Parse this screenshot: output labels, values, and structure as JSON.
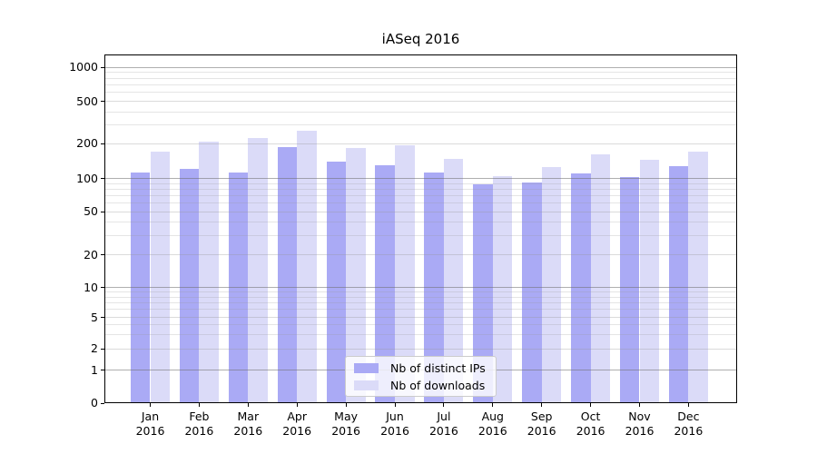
{
  "chart_data": {
    "type": "bar",
    "title": "iASeq 2016",
    "x_tick_months": [
      "Jan",
      "Feb",
      "Mar",
      "Apr",
      "May",
      "Jun",
      "Jul",
      "Aug",
      "Sep",
      "Oct",
      "Nov",
      "Dec"
    ],
    "x_tick_year": "2016",
    "categories": [
      "Jan 2016",
      "Feb 2016",
      "Mar 2016",
      "Apr 2016",
      "May 2016",
      "Jun 2016",
      "Jul 2016",
      "Aug 2016",
      "Sep 2016",
      "Oct 2016",
      "Nov 2016",
      "Dec 2016"
    ],
    "series": [
      {
        "name": "Nb of distinct IPs",
        "color": "#aaaaf5",
        "values": [
          112,
          121,
          113,
          186,
          141,
          130,
          112,
          89,
          92,
          111,
          104,
          127
        ]
      },
      {
        "name": "Nb of downloads",
        "color": "#dbdbf8",
        "values": [
          170,
          208,
          226,
          263,
          184,
          194,
          148,
          105,
          126,
          163,
          145,
          172
        ]
      }
    ],
    "yscale": "symlog",
    "yticks": [
      0,
      1,
      2,
      5,
      10,
      20,
      50,
      100,
      200,
      500,
      1000
    ],
    "ytick_labels": [
      "0",
      "1",
      "2",
      "5",
      "10",
      "20",
      "50",
      "100",
      "200",
      "500",
      "1000"
    ],
    "ylim": [
      0,
      1300
    ],
    "grid": "both",
    "legend_position": "lower center inside",
    "xlabel": "",
    "ylabel": ""
  },
  "colors": {
    "bar_distinct_ips": "#aaaaf5",
    "bar_downloads": "#dbdbf8",
    "grid_major": "#b0b0b0",
    "grid_minor": "#e4e4e4",
    "axis_frame": "#000000",
    "background": "#ffffff",
    "legend_border": "#cccccc"
  }
}
